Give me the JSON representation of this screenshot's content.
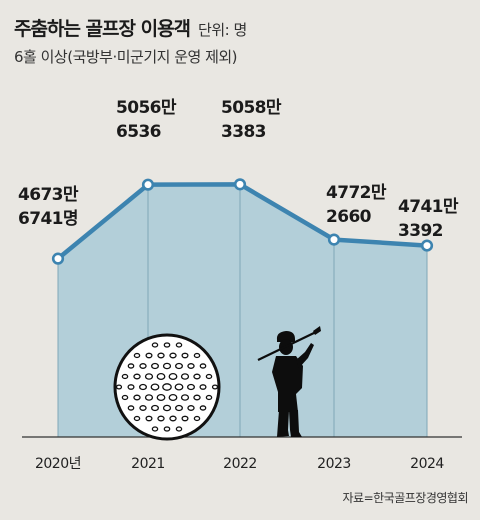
{
  "header": {
    "title": "주춤하는 골프장 이용객",
    "unit": "단위: 명",
    "subtitle": "6홀 이상(국방부·미군기지 운영 제외)"
  },
  "source": "자료=한국골프장경영협회",
  "colors": {
    "background": "#e9e7e2",
    "area_fill": "#b3cfd9",
    "line": "#3d84b0",
    "gridline": "#7fa7b8",
    "axis": "#333333",
    "text": "#222222"
  },
  "icons": [
    "golf-ball-icon",
    "golfer-silhouette-icon"
  ],
  "chart_data": {
    "type": "area",
    "title": "주춤하는 골프장 이용객",
    "categories": [
      "2020년",
      "2021",
      "2022",
      "2023",
      "2024"
    ],
    "values": [
      46736741,
      50566536,
      50583383,
      47722660,
      47413392
    ],
    "data_labels": [
      [
        "4673만",
        "6741명"
      ],
      [
        "5056만",
        "6536"
      ],
      [
        "5058만",
        "3383"
      ],
      [
        "4772만",
        "2660"
      ],
      [
        "4741만",
        "3392"
      ]
    ],
    "ylim": [
      37500000,
      52000000
    ],
    "grid": false,
    "legend": "none",
    "xlabel": "",
    "ylabel": ""
  }
}
